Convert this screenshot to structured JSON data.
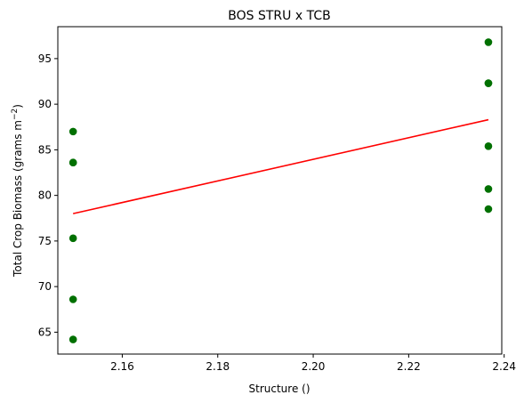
{
  "chart_data": {
    "type": "scatter",
    "title": "BOS STRU x TCB",
    "xlabel": "Structure ()",
    "ylabel": "Total Crop Biomass (grams m",
    "ylabel_sup": "−2",
    "ylabel_close": ")",
    "xlim": [
      2.1465,
      2.2395
    ],
    "ylim": [
      62.6,
      98.5
    ],
    "xticks": [
      2.16,
      2.18,
      2.2,
      2.22,
      2.24
    ],
    "xtick_labels": [
      "2.16",
      "2.18",
      "2.20",
      "2.22",
      "2.24"
    ],
    "yticks": [
      65,
      70,
      75,
      80,
      85,
      90,
      95
    ],
    "ytick_labels": [
      "65",
      "70",
      "75",
      "80",
      "85",
      "90",
      "95"
    ],
    "grid": false,
    "points": {
      "color": "#007000",
      "x": [
        2.1497,
        2.1497,
        2.1497,
        2.1497,
        2.1497,
        2.1497,
        2.2367,
        2.2367,
        2.2367,
        2.2367,
        2.2367,
        2.2367
      ],
      "y": [
        87.0,
        83.6,
        83.6,
        75.3,
        68.6,
        64.2,
        96.8,
        92.3,
        92.3,
        85.4,
        80.7,
        78.5
      ]
    },
    "fit_line": {
      "color": "#ff0000",
      "x": [
        2.1497,
        2.2367
      ],
      "y": [
        78.0,
        88.3
      ]
    }
  }
}
